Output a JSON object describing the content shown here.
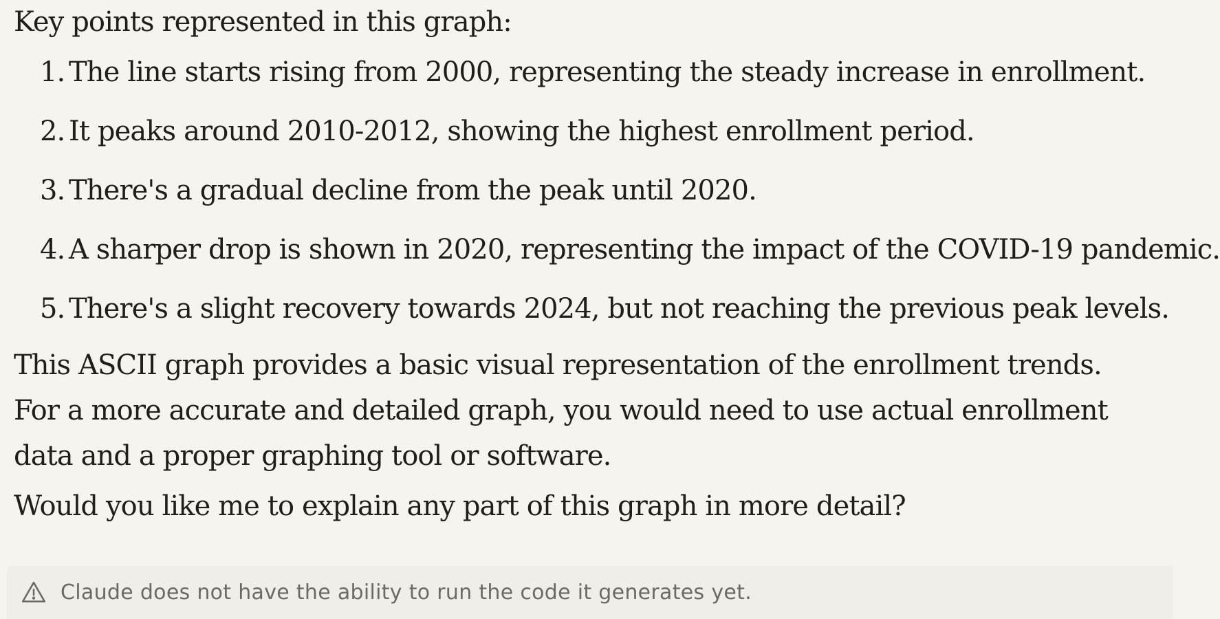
{
  "message": {
    "intro": "Key points represented in this graph:",
    "points": [
      {
        "number": "1.",
        "text": "The line starts rising from 2000, representing the steady increase in enrollment."
      },
      {
        "number": "2.",
        "text": "It peaks around 2010-2012, showing the highest enrollment period."
      },
      {
        "number": "3.",
        "text": "There's a gradual decline from the peak until 2020."
      },
      {
        "number": "4.",
        "text": "A sharper drop is shown in 2020, representing the impact of the COVID-19 pandemic."
      },
      {
        "number": "5.",
        "text": "There's a slight recovery towards 2024, but not reaching the previous peak levels."
      }
    ],
    "summary": "This ASCII graph provides a basic visual representation of the enrollment trends. For a more accurate and detailed graph, you would need to use actual enrollment data and a proper graphing tool or software.",
    "question": "Would you like me to explain any part of this graph in more detail?"
  },
  "warning": {
    "icon": "warning-triangle-icon",
    "text": "Claude does not have the ability to run the code it generates yet."
  }
}
